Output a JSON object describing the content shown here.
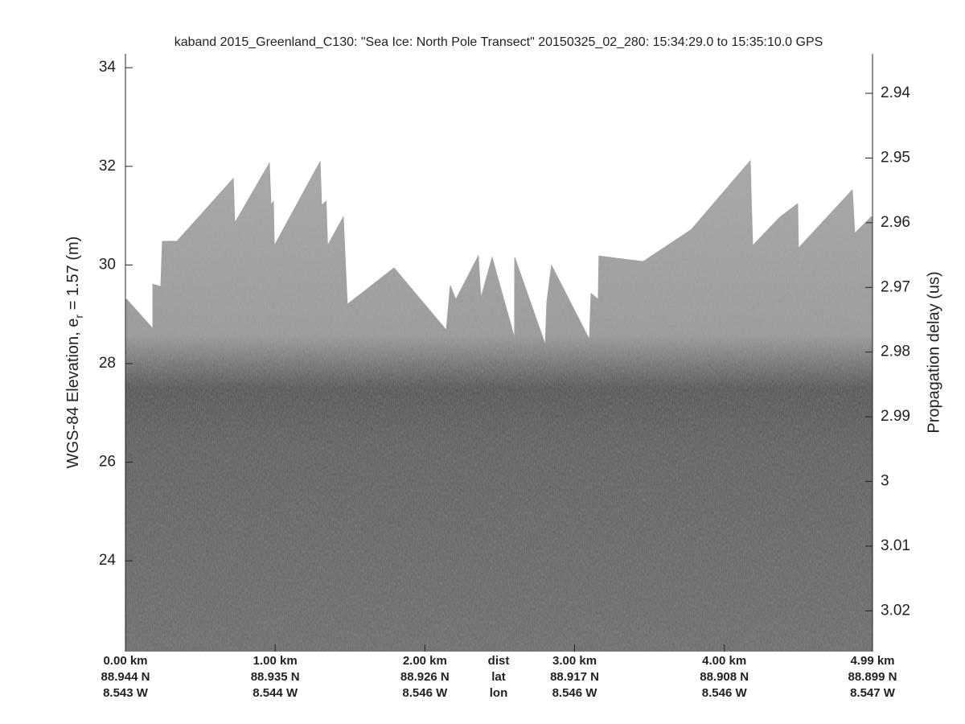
{
  "chart_data": {
    "type": "echogram",
    "title": "kaband 2015_Greenland_C130: \"Sea Ice: North Pole Transect\"  20150325_02_280: 15:34:29.0 to 15:35:10.0 GPS",
    "ylabel_parts": [
      "WGS-84 Elevation, e",
      "r",
      " = 1.57 (m)"
    ],
    "y2label": "Propagation delay (us)",
    "xlim": [
      0,
      4.99
    ],
    "ylim": [
      22.16,
      34.28
    ],
    "yticks": [
      24,
      26,
      28,
      30,
      32,
      34
    ],
    "y2lim": [
      3.0263,
      2.9339
    ],
    "y2ticks": [
      2.94,
      2.95,
      2.96,
      2.97,
      2.98,
      2.99,
      3,
      3.01,
      3.02
    ],
    "x_row_labels": [
      "dist",
      "lat",
      "lon"
    ],
    "xticks": [
      {
        "value": 0,
        "label": "0.00 km",
        "lat": "88.944 N",
        "lon": "8.543 W"
      },
      {
        "value": 1,
        "label": "1.00 km",
        "lat": "88.935 N",
        "lon": "8.544 W"
      },
      {
        "value": 2,
        "label": "2.00 km",
        "lat": "88.926 N",
        "lon": "8.546 W"
      },
      {
        "value": 3,
        "label": "3.00 km",
        "lat": "88.917 N",
        "lon": "8.546 W"
      },
      {
        "value": 4,
        "label": "4.00 km",
        "lat": "88.908 N",
        "lon": "8.546 W"
      },
      {
        "value": 4.99,
        "label": "4.99 km",
        "lat": "88.899 N",
        "lon": "8.547 W"
      }
    ],
    "x": [
      0,
      0.183,
      0.183,
      0.236,
      0.247,
      0.344,
      0.72,
      0.73,
      0.961,
      0.972,
      0.988,
      0.994,
      1.3,
      1.31,
      1.34,
      1.35,
      1.455,
      1.482,
      1.794,
      2.143,
      2.17,
      2.207,
      2.357,
      2.374,
      2.449,
      2.599,
      2.6,
      2.804,
      2.815,
      2.846,
      3.099,
      3.11,
      3.158,
      3.163,
      3.459,
      3.781,
      4.173,
      4.189,
      4.372,
      4.49,
      4.495,
      4.855,
      4.871,
      4.99
    ],
    "series": [
      {
        "name": "surface",
        "color": "#a2a2a2",
        "values": [
          29.33,
          28.71,
          29.61,
          29.56,
          30.48,
          30.48,
          31.75,
          30.85,
          32.06,
          31.21,
          31.29,
          30.39,
          32.09,
          31.21,
          31.29,
          30.39,
          30.97,
          29.2,
          29.94,
          28.68,
          29.58,
          29.3,
          30.18,
          29.33,
          30.15,
          28.52,
          30.15,
          28.39,
          29.25,
          29.99,
          28.49,
          29.42,
          29.3,
          30.18,
          30.07,
          30.72,
          32.11,
          30.39,
          30.97,
          31.24,
          30.34,
          31.52,
          30.64,
          31.0
        ]
      }
    ]
  }
}
